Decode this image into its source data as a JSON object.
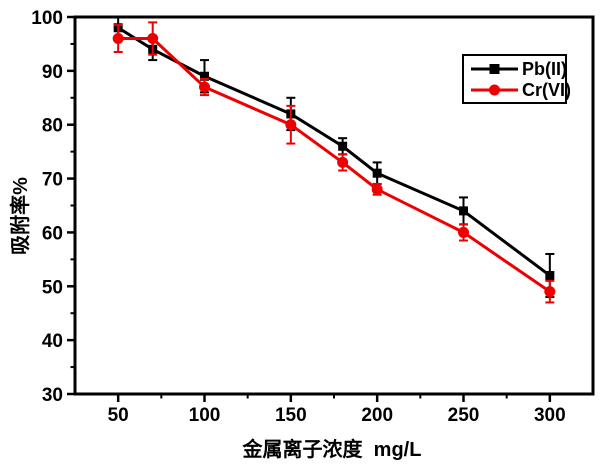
{
  "chart_data": {
    "type": "line",
    "title": "",
    "xlabel": "金属离子浓度  mg/L",
    "ylabel": "吸附率%",
    "x": [
      50,
      70,
      100,
      150,
      180,
      200,
      250,
      300
    ],
    "series": [
      {
        "name": "Pb(II)",
        "color": "#000000",
        "marker": "square",
        "values": [
          98,
          94,
          89,
          82,
          76,
          71,
          64,
          52
        ],
        "errors": [
          2,
          2,
          3,
          3,
          1.5,
          2,
          2.5,
          4
        ]
      },
      {
        "name": "Cr(VI)",
        "color": "#ee0000",
        "marker": "circle",
        "values": [
          96,
          96,
          87,
          80,
          73,
          68,
          60,
          49
        ],
        "errors": [
          2.5,
          3,
          1.5,
          3.5,
          1.5,
          1,
          1.5,
          2
        ]
      }
    ],
    "xlim": [
      25,
      325
    ],
    "ylim": [
      30,
      100
    ],
    "x_major_ticks": [
      50,
      100,
      150,
      200,
      250,
      300
    ],
    "x_minor_ticks": [
      75,
      125,
      175,
      225,
      275
    ],
    "y_major_ticks": [
      100,
      90,
      80,
      70,
      60,
      50,
      40,
      30
    ],
    "y_minor_ticks": [
      95,
      85,
      75,
      65,
      55,
      45,
      35
    ],
    "grid": false,
    "error_bars": true,
    "legend_position": "upper-right",
    "axis_color": "#000000"
  }
}
